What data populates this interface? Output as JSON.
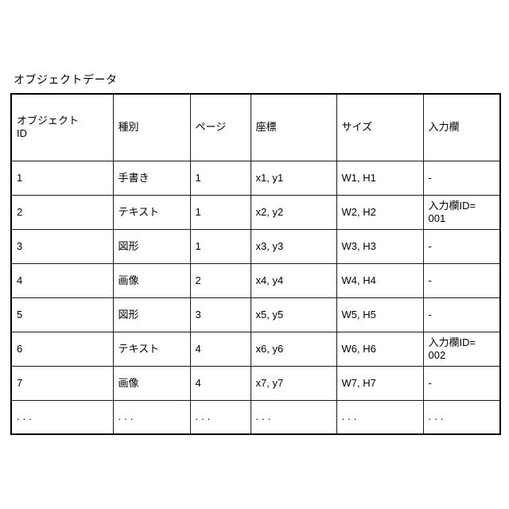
{
  "title": "オブジェクトデータ",
  "table": {
    "headers": [
      "オブジェクト\nID",
      "種別",
      "ページ",
      "座標",
      "サイズ",
      "入力欄"
    ],
    "rows": [
      [
        "1",
        "手書き",
        "1",
        "x1, y1",
        "W1, H1",
        "-"
      ],
      [
        "2",
        "テキスト",
        "1",
        "x2, y2",
        "W2, H2",
        "入力欄ID=\n001"
      ],
      [
        "3",
        "図形",
        "1",
        "x3, y3",
        "W3, H3",
        "-"
      ],
      [
        "4",
        "画像",
        "2",
        "x4, y4",
        "W4, H4",
        "-"
      ],
      [
        "5",
        "図形",
        "3",
        "x5, y5",
        "W5, H5",
        "-"
      ],
      [
        "6",
        "テキスト",
        "4",
        "x6, y6",
        "W6, H6",
        "入力欄ID=\n002"
      ],
      [
        "7",
        "画像",
        "4",
        "x7, y7",
        "W7, H7",
        "-"
      ],
      [
        "...",
        "...",
        "...",
        "...",
        "...",
        "..."
      ]
    ],
    "colors": {
      "border": "#000000",
      "text": "#000000",
      "background": "#ffffff"
    }
  }
}
